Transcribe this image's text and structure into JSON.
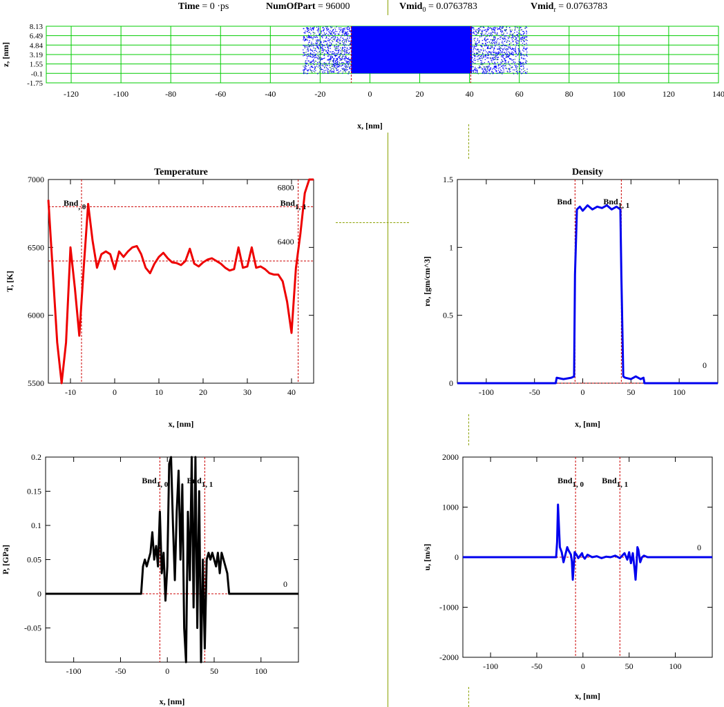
{
  "header": {
    "time_label": "Time",
    "time_value": "= 0 ·ps",
    "numofpart_label": "NumOfPart",
    "numofpart_value": "= 96000",
    "vmid0_label": "Vmid",
    "vmid0_sub": "0",
    "vmid0_value": "= 0.0763783",
    "vmidr_label": "Vmid",
    "vmidr_sub": "r",
    "vmidr_value": "= 0.0763783"
  },
  "colors": {
    "grid_green": "#00cc00",
    "particles": "#0000ff",
    "temperature": "#ee0000",
    "density": "#0000ee",
    "pressure": "#000000",
    "velocity": "#0000ee",
    "marker": "#cc0000",
    "separator": "#8aa000"
  },
  "chart_data": [
    {
      "id": "particles",
      "type": "scatter",
      "title": "",
      "xlabel": "x, [nm]",
      "ylabel": "z, [nm]",
      "xlim": [
        -130,
        140
      ],
      "ylim": [
        -1.75,
        8.13
      ],
      "x_ticks": [
        -120,
        -100,
        -80,
        -60,
        -40,
        -20,
        0,
        20,
        40,
        60,
        80,
        100,
        120,
        140
      ],
      "y_ticks": [
        8.13,
        6.49,
        4.84,
        3.19,
        1.55,
        -0.1,
        -1.75
      ],
      "y_tick_labels": [
        "8.13",
        "6.49",
        "4.84",
        "3.19",
        "1.55",
        "-0.1",
        "-1.75"
      ],
      "grid": true,
      "dense_region": [
        -7.5,
        41,
        -0.1,
        8.13
      ],
      "sparse_regions": [
        [
          -27,
          -7.5,
          -0.1,
          8.13
        ],
        [
          41,
          63,
          -0.1,
          8.13
        ]
      ],
      "markers_x": [
        -7.5,
        40.5
      ]
    },
    {
      "id": "temperature",
      "type": "line",
      "title": "Temperature",
      "xlabel": "x, [nm]",
      "ylabel": "T, [K]",
      "xlim": [
        -15,
        45
      ],
      "ylim": [
        5500,
        7000
      ],
      "x_ticks": [
        -10,
        0,
        10,
        20,
        30,
        40
      ],
      "y_ticks": [
        5500,
        6000,
        6500,
        7000
      ],
      "secondary_labels": [
        "6800",
        "6400"
      ],
      "markers_x": [
        -7.5,
        41.5
      ],
      "markers_y": [
        6800,
        6400
      ],
      "marker_labels": [
        {
          "text": "Bnd",
          "sub": ", 0"
        },
        {
          "text": "Bnd",
          "sub": "1, 1"
        }
      ],
      "x": [
        -15,
        -13,
        -12,
        -11,
        -10,
        -9,
        -8,
        -7,
        -6,
        -5,
        -4,
        -3,
        -2,
        -1,
        0,
        1,
        2,
        3,
        4,
        5,
        6,
        7,
        8,
        9,
        10,
        11,
        12,
        13,
        14,
        15,
        16,
        17,
        18,
        19,
        20,
        21,
        22,
        23,
        24,
        25,
        26,
        27,
        28,
        29,
        30,
        31,
        32,
        33,
        34,
        35,
        36,
        37,
        38,
        39,
        40,
        41,
        42,
        43,
        44,
        45
      ],
      "y": [
        6850,
        5800,
        5500,
        5800,
        6500,
        6200,
        5850,
        6350,
        6820,
        6550,
        6350,
        6450,
        6470,
        6450,
        6340,
        6470,
        6430,
        6470,
        6500,
        6510,
        6450,
        6350,
        6310,
        6380,
        6430,
        6460,
        6420,
        6390,
        6385,
        6370,
        6400,
        6490,
        6380,
        6360,
        6390,
        6410,
        6420,
        6400,
        6380,
        6350,
        6330,
        6340,
        6500,
        6350,
        6360,
        6500,
        6350,
        6360,
        6340,
        6310,
        6300,
        6300,
        6250,
        6100,
        5870,
        6350,
        6600,
        6900,
        7000,
        7000
      ]
    },
    {
      "id": "density",
      "type": "line",
      "title": "Density",
      "xlabel": "x, [nm]",
      "ylabel": "ro, [gm/cm^3]",
      "xlim": [
        -130,
        140
      ],
      "ylim": [
        0,
        1.5
      ],
      "x_ticks": [
        -100,
        -50,
        0,
        50,
        100
      ],
      "y_ticks": [
        0,
        0.5,
        1,
        1.5
      ],
      "markers_x": [
        -8,
        40
      ],
      "marker_labels": [
        {
          "text": "Bnd",
          "sub": ""
        },
        {
          "text": "Bnd",
          "sub": "1, 1"
        }
      ],
      "annotation": "0",
      "x": [
        -130,
        -28,
        -27,
        -20,
        -12,
        -9,
        -8,
        -6,
        -3,
        0,
        5,
        10,
        15,
        20,
        25,
        30,
        35,
        39,
        40,
        42,
        44,
        50,
        55,
        60,
        63,
        64,
        140
      ],
      "y": [
        0,
        0,
        0.04,
        0.03,
        0.04,
        0.05,
        0.8,
        1.28,
        1.3,
        1.27,
        1.31,
        1.28,
        1.3,
        1.29,
        1.31,
        1.28,
        1.3,
        1.28,
        0.8,
        0.05,
        0.04,
        0.03,
        0.05,
        0.03,
        0.04,
        0,
        0
      ]
    },
    {
      "id": "pressure",
      "type": "line",
      "title": "",
      "xlabel": "x, [nm]",
      "ylabel": "P, [GPa]",
      "xlim": [
        -130,
        140
      ],
      "ylim": [
        -0.1,
        0.2
      ],
      "x_ticks": [
        -100,
        -50,
        0,
        50,
        100
      ],
      "y_ticks": [
        -0.05,
        0,
        0.05,
        0.1,
        0.15,
        0.2
      ],
      "markers_x": [
        -8,
        40
      ],
      "marker_labels": [
        {
          "text": "Bnd",
          "sub": "1, 0"
        },
        {
          "text": "Bnd",
          "sub": "1, 1"
        }
      ],
      "annotation": "0",
      "x": [
        -130,
        -28,
        -26,
        -24,
        -22,
        -20,
        -18,
        -16,
        -14,
        -12,
        -10,
        -8,
        -6,
        -4,
        -2,
        0,
        2,
        4,
        6,
        8,
        10,
        12,
        14,
        16,
        18,
        20,
        22,
        24,
        26,
        28,
        30,
        32,
        34,
        36,
        38,
        40,
        42,
        44,
        46,
        48,
        50,
        52,
        54,
        56,
        58,
        60,
        62,
        64,
        66,
        140
      ],
      "y": [
        0,
        0,
        0.04,
        0.05,
        0.04,
        0.05,
        0.06,
        0.09,
        0.05,
        0.07,
        0.04,
        0.12,
        0.03,
        0.06,
        -0.01,
        0.04,
        0.19,
        0.2,
        0.1,
        0.02,
        0.12,
        0.18,
        0.05,
        0.16,
        -0.05,
        -0.1,
        0.12,
        0.02,
        0.2,
        -0.02,
        0.2,
        -0.05,
        0.15,
        -0.1,
        0.05,
        -0.08,
        0.05,
        0.06,
        0.05,
        0.06,
        0.05,
        0.04,
        0.06,
        0.03,
        0.06,
        0.05,
        0.04,
        0.03,
        0,
        0
      ]
    },
    {
      "id": "velocity",
      "type": "line",
      "title": "",
      "xlabel": "x, [nm]",
      "ylabel": "u, [m/s]",
      "xlim": [
        -130,
        140
      ],
      "ylim": [
        -2000,
        2000
      ],
      "x_ticks": [
        -100,
        -50,
        0,
        50,
        100
      ],
      "y_ticks": [
        -2000,
        -1000,
        0,
        1000,
        2000
      ],
      "markers_x": [
        -8,
        40
      ],
      "marker_labels": [
        {
          "text": "Bnd",
          "sub": "1, 0"
        },
        {
          "text": "Bnd",
          "sub": "1, 1"
        }
      ],
      "annotation": "0",
      "x": [
        -130,
        -29,
        -28,
        -27,
        -25,
        -23,
        -21,
        -19,
        -17,
        -16,
        -13,
        -12,
        -11,
        -10,
        -9,
        -7,
        -5,
        -3,
        -1,
        0,
        2,
        5,
        10,
        15,
        20,
        25,
        30,
        35,
        40,
        45,
        48,
        50,
        52,
        54,
        56,
        57,
        58,
        59,
        60,
        62,
        64,
        66,
        70,
        140
      ],
      "y": [
        0,
        0,
        300,
        1050,
        200,
        100,
        -100,
        50,
        200,
        150,
        50,
        -80,
        -450,
        -200,
        100,
        50,
        -20,
        30,
        80,
        20,
        -30,
        50,
        0,
        20,
        -20,
        10,
        0,
        30,
        -20,
        80,
        -50,
        100,
        -120,
        80,
        -250,
        -450,
        -150,
        200,
        150,
        -100,
        0,
        30,
        0,
        0
      ]
    }
  ]
}
